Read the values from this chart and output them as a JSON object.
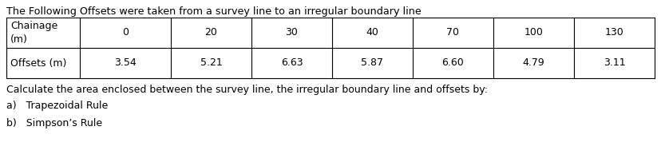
{
  "title": "The Following Offsets were taken from a survey line to an irregular boundary line",
  "row1_labels": [
    "Chainage\n(m)",
    "0",
    "20",
    "30",
    "40",
    "70",
    "100",
    "130"
  ],
  "row2_labels": [
    "Offsets (m)",
    "3.54",
    "5.21",
    "6.63",
    "5.87",
    "6.60",
    "4.79",
    "3.11"
  ],
  "question_text": "Calculate the area enclosed between the survey line, the irregular boundary line and offsets by:",
  "part_a": "a)   Trapezoidal Rule",
  "part_b": "b)   Simpson’s Rule",
  "background_color": "#ffffff",
  "font_size": 9.0,
  "title_font_size": 9.2
}
